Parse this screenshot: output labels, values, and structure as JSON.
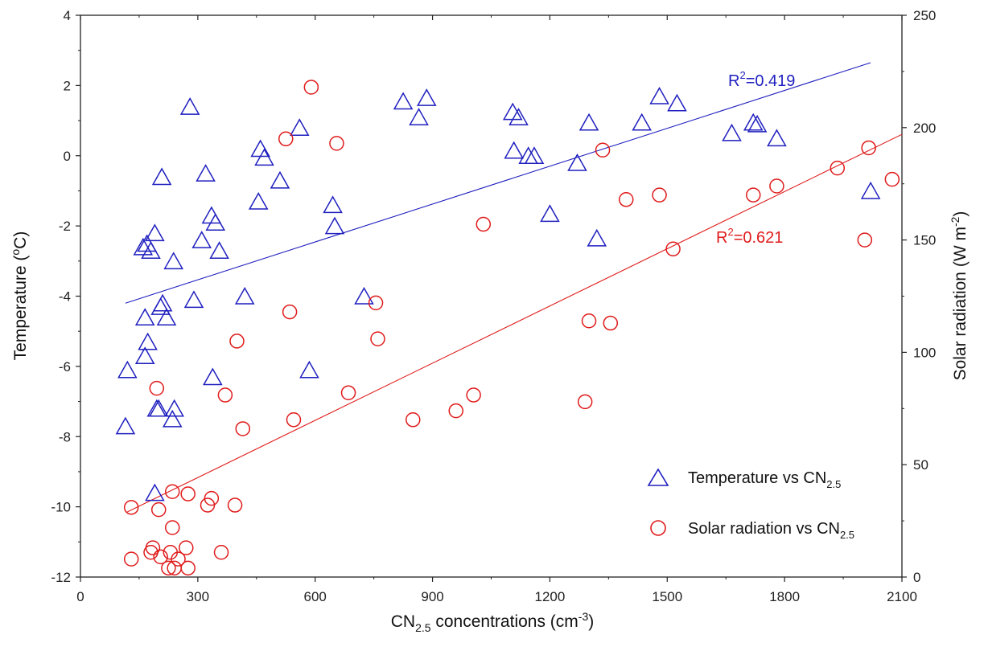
{
  "chart_data": {
    "type": "scatter",
    "xlabel": {
      "prefix": "CN",
      "sub": "2.5",
      "mid": " concentrations (cm",
      "sup": "-3",
      "suffix": ")"
    },
    "ylabel_left": {
      "prefix": "Temperature (",
      "sup": "o",
      "suffix": "C)"
    },
    "ylabel_right": {
      "prefix": "Solar radiation (W m",
      "sup": "-2",
      "suffix": ")"
    },
    "xlim": [
      0,
      2100
    ],
    "ylim_left": [
      -12,
      4
    ],
    "ylim_right": [
      0,
      250
    ],
    "x_ticks": [
      "0",
      "300",
      "600",
      "900",
      "1200",
      "1500",
      "1800",
      "2100"
    ],
    "y_left_ticks": [
      "4",
      "2",
      "0",
      "-2",
      "-4",
      "-6",
      "-8",
      "-10",
      "-12"
    ],
    "y_right_ticks": [
      "0",
      "50",
      "100",
      "150",
      "200",
      "250"
    ],
    "grid": false,
    "legend_position": "bottom-right",
    "colors": {
      "temperature": "#1f1fbf",
      "solar": "#e01b1b",
      "axis": "#222222"
    },
    "series": [
      {
        "name": "Temperature vs CN2.5",
        "legend": {
          "prefix": "Temperature vs CN",
          "sub": "2.5"
        },
        "axis": "left",
        "marker": "triangle",
        "color": "#1f1fbf",
        "r2_label": {
          "base": "R",
          "sup": "2",
          "value": "=0.419"
        },
        "fit": {
          "x": [
            115,
            2020
          ],
          "y": [
            -4.2,
            2.65
          ]
        },
        "points": [
          [
            115,
            -7.7
          ],
          [
            120,
            -6.1
          ],
          [
            160,
            -2.6
          ],
          [
            165,
            -4.6
          ],
          [
            165,
            -5.7
          ],
          [
            170,
            -2.5
          ],
          [
            172,
            -5.3
          ],
          [
            180,
            -2.7
          ],
          [
            190,
            -9.6
          ],
          [
            190,
            -2.2
          ],
          [
            195,
            -7.2
          ],
          [
            200,
            -7.2
          ],
          [
            205,
            -4.3
          ],
          [
            208,
            -0.6
          ],
          [
            210,
            -4.2
          ],
          [
            220,
            -4.6
          ],
          [
            235,
            -7.5
          ],
          [
            238,
            -3.0
          ],
          [
            240,
            -7.2
          ],
          [
            280,
            1.4
          ],
          [
            290,
            -4.1
          ],
          [
            310,
            -2.4
          ],
          [
            320,
            -0.5
          ],
          [
            335,
            -1.7
          ],
          [
            338,
            -6.3
          ],
          [
            345,
            -1.9
          ],
          [
            355,
            -2.7
          ],
          [
            420,
            -4.0
          ],
          [
            455,
            -1.3
          ],
          [
            460,
            0.2
          ],
          [
            470,
            -0.05
          ],
          [
            510,
            -0.7
          ],
          [
            560,
            0.8
          ],
          [
            585,
            -6.1
          ],
          [
            645,
            -1.4
          ],
          [
            650,
            -2.0
          ],
          [
            725,
            -4.0
          ],
          [
            825,
            1.55
          ],
          [
            865,
            1.1
          ],
          [
            885,
            1.65
          ],
          [
            1105,
            1.25
          ],
          [
            1108,
            0.15
          ],
          [
            1120,
            1.1
          ],
          [
            1145,
            0.0
          ],
          [
            1160,
            0.0
          ],
          [
            1200,
            -1.65
          ],
          [
            1270,
            -0.2
          ],
          [
            1300,
            0.95
          ],
          [
            1320,
            -2.35
          ],
          [
            1435,
            0.95
          ],
          [
            1480,
            1.7
          ],
          [
            1525,
            1.5
          ],
          [
            1665,
            0.65
          ],
          [
            1720,
            0.95
          ],
          [
            1730,
            0.9
          ],
          [
            1780,
            0.5
          ],
          [
            2020,
            -1.0
          ]
        ]
      },
      {
        "name": "Solar radiation vs CN2.5",
        "legend": {
          "prefix": "Solar radiation vs CN",
          "sub": "2.5"
        },
        "axis": "right",
        "marker": "circle",
        "color": "#e01b1b",
        "r2_label": {
          "base": "R",
          "sup": "2",
          "value": "=0.621"
        },
        "fit": {
          "x": [
            120,
            2100
          ],
          "y": [
            29,
            197
          ]
        },
        "points": [
          [
            130,
            8
          ],
          [
            130,
            31
          ],
          [
            180,
            11
          ],
          [
            185,
            13
          ],
          [
            195,
            84
          ],
          [
            200,
            30
          ],
          [
            205,
            9
          ],
          [
            225,
            4
          ],
          [
            230,
            11
          ],
          [
            235,
            38
          ],
          [
            235,
            22
          ],
          [
            240,
            4
          ],
          [
            250,
            8
          ],
          [
            270,
            13
          ],
          [
            275,
            37
          ],
          [
            275,
            4
          ],
          [
            325,
            32
          ],
          [
            335,
            35
          ],
          [
            360,
            11
          ],
          [
            370,
            81
          ],
          [
            395,
            32
          ],
          [
            400,
            105
          ],
          [
            415,
            66
          ],
          [
            525,
            195
          ],
          [
            535,
            118
          ],
          [
            545,
            70
          ],
          [
            590,
            218
          ],
          [
            655,
            193
          ],
          [
            685,
            82
          ],
          [
            755,
            122
          ],
          [
            760,
            106
          ],
          [
            850,
            70
          ],
          [
            960,
            74
          ],
          [
            1005,
            81
          ],
          [
            1030,
            157
          ],
          [
            1290,
            78
          ],
          [
            1300,
            114
          ],
          [
            1335,
            190
          ],
          [
            1355,
            113
          ],
          [
            1395,
            168
          ],
          [
            1480,
            170
          ],
          [
            1515,
            146
          ],
          [
            1720,
            170
          ],
          [
            1780,
            174
          ],
          [
            1935,
            182
          ],
          [
            2005,
            150
          ],
          [
            2015,
            191
          ],
          [
            2075,
            177
          ]
        ]
      }
    ]
  }
}
